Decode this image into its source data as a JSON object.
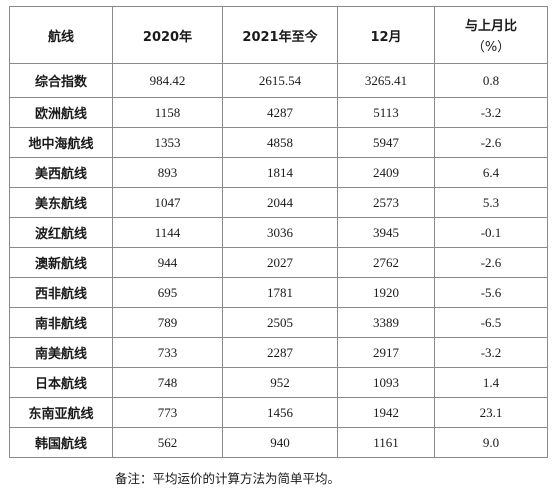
{
  "table": {
    "headers": [
      "航线",
      "2020年",
      "2021年至今",
      "12月",
      "与上月比",
      "（%）"
    ],
    "rows": [
      {
        "name": "综合指数",
        "y2020": "984.42",
        "y2021": "2615.54",
        "dec": "3265.41",
        "mom": "0.8"
      },
      {
        "name": "欧洲航线",
        "y2020": "1158",
        "y2021": "4287",
        "dec": "5113",
        "mom": "-3.2"
      },
      {
        "name": "地中海航线",
        "y2020": "1353",
        "y2021": "4858",
        "dec": "5947",
        "mom": "-2.6"
      },
      {
        "name": "美西航线",
        "y2020": "893",
        "y2021": "1814",
        "dec": "2409",
        "mom": "6.4"
      },
      {
        "name": "美东航线",
        "y2020": "1047",
        "y2021": "2044",
        "dec": "2573",
        "mom": "5.3"
      },
      {
        "name": "波红航线",
        "y2020": "1144",
        "y2021": "3036",
        "dec": "3945",
        "mom": "-0.1"
      },
      {
        "name": "澳新航线",
        "y2020": "944",
        "y2021": "2027",
        "dec": "2762",
        "mom": "-2.6"
      },
      {
        "name": "西非航线",
        "y2020": "695",
        "y2021": "1781",
        "dec": "1920",
        "mom": "-5.6"
      },
      {
        "name": "南非航线",
        "y2020": "789",
        "y2021": "2505",
        "dec": "3389",
        "mom": "-6.5"
      },
      {
        "name": "南美航线",
        "y2020": "733",
        "y2021": "2287",
        "dec": "2917",
        "mom": "-3.2"
      },
      {
        "name": "日本航线",
        "y2020": "748",
        "y2021": "952",
        "dec": "1093",
        "mom": "1.4"
      },
      {
        "name": "东南亚航线",
        "y2020": "773",
        "y2021": "1456",
        "dec": "1942",
        "mom": "23.1"
      },
      {
        "name": "韩国航线",
        "y2020": "562",
        "y2021": "940",
        "dec": "1161",
        "mom": "9.0"
      }
    ]
  },
  "footnote": "备注：平均运价的计算方法为简单平均。"
}
